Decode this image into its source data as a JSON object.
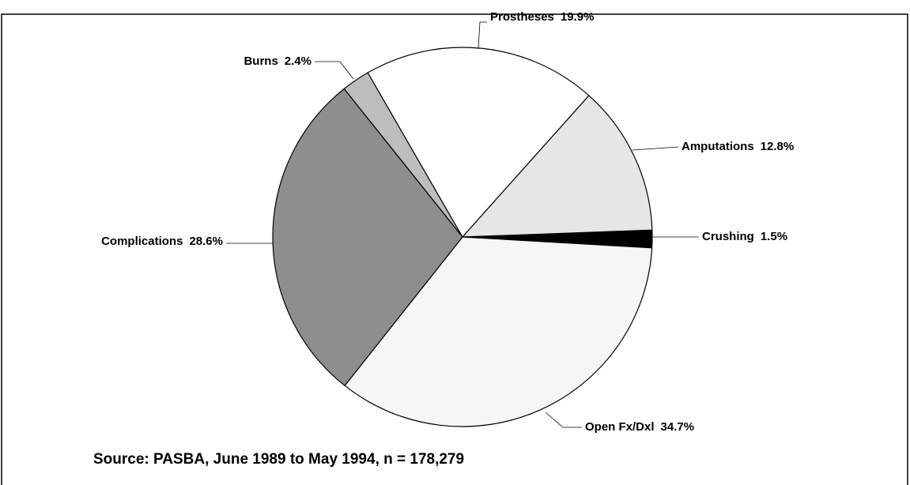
{
  "chart_data": {
    "type": "pie",
    "categories": [
      "Crushing",
      "Open Fx/Dxl",
      "Complications",
      "Burns",
      "Prostheses",
      "Amputations"
    ],
    "values": [
      1.5,
      34.7,
      28.6,
      2.4,
      19.9,
      12.8
    ],
    "value_labels": [
      "1.5%",
      "34.7%",
      "28.6%",
      "2.4%",
      "19.9%",
      "12.8%"
    ],
    "colors": [
      "#000000",
      "#f6f6f6",
      "#8e8e8e",
      "#bdbdbd",
      "#ffffff",
      "#e6e6e6"
    ],
    "source": "Source:  PASBA, June 1989 to May 1994, n = 178,279"
  }
}
